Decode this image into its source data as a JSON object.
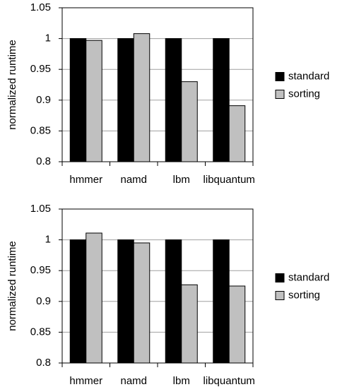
{
  "chart_data": [
    {
      "type": "bar",
      "y_label": "normalized runtime",
      "categories": [
        "hmmer",
        "namd",
        "lbm",
        "libquantum"
      ],
      "series": [
        {
          "name": "standard",
          "color": "#000000",
          "values": [
            1,
            1,
            1,
            1
          ]
        },
        {
          "name": "sorting",
          "color": "#c0c0c0",
          "values": [
            0.997,
            1.008,
            0.93,
            0.891
          ]
        }
      ],
      "ylim": [
        0.8,
        1.05
      ],
      "yticks": [
        0.8,
        0.85,
        0.9,
        0.95,
        1,
        1.05
      ],
      "grid": true,
      "legend": "right"
    },
    {
      "type": "bar",
      "y_label": "normalized runtime",
      "categories": [
        "hmmer",
        "namd",
        "lbm",
        "libquantum"
      ],
      "series": [
        {
          "name": "standard",
          "color": "#000000",
          "values": [
            1,
            1,
            1,
            1
          ]
        },
        {
          "name": "sorting",
          "color": "#c0c0c0",
          "values": [
            1.011,
            0.995,
            0.927,
            0.925
          ]
        }
      ],
      "ylim": [
        0.8,
        1.05
      ],
      "yticks": [
        0.8,
        0.85,
        0.9,
        0.95,
        1,
        1.05
      ],
      "grid": true,
      "legend": "right"
    }
  ]
}
